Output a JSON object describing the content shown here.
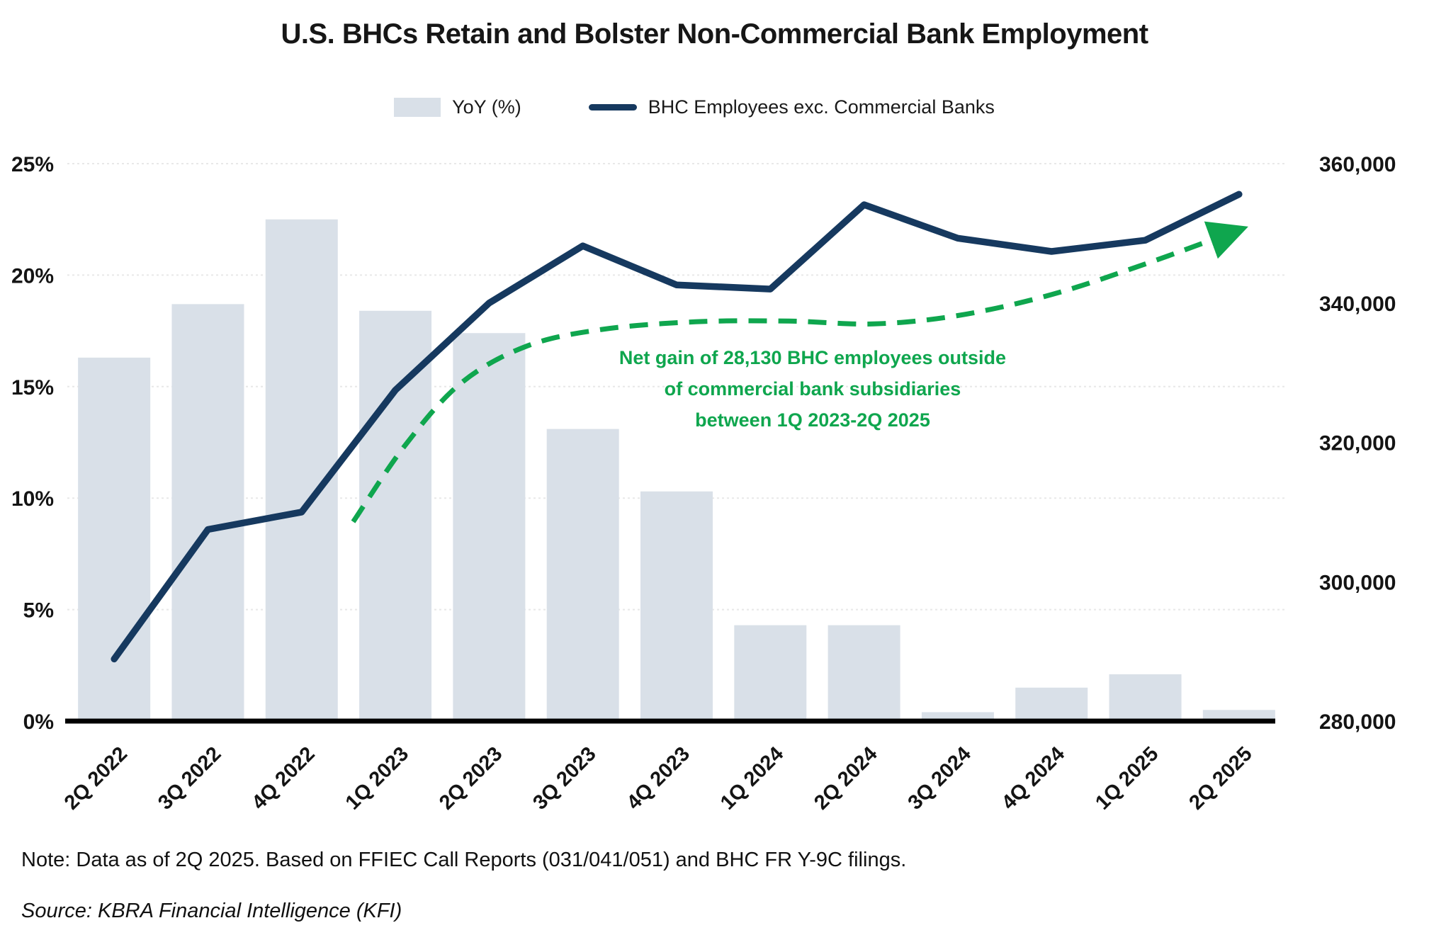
{
  "title": "U.S. BHCs Retain and Bolster Non-Commercial Bank Employment",
  "legend": [
    {
      "label": "YoY (%)",
      "swatch": "bar"
    },
    {
      "label": "BHC Employees exc. Commercial Banks",
      "swatch": "line"
    }
  ],
  "annotation": {
    "lines": [
      "Net gain of 28,130 BHC employees outside",
      "of commercial bank subsidiaries",
      "between 1Q 2023-2Q 2025"
    ]
  },
  "note": "Note: Data as of 2Q 2025. Based on FFIEC Call Reports (031/041/051) and BHC FR Y-9C filings.",
  "source": "Source: KBRA Financial Intelligence (KFI)",
  "colors": {
    "bar": "#D9E0E8",
    "line": "#16395F",
    "green": "#0FA64E",
    "grid": "#E8E8E8",
    "axis": "#000000"
  },
  "chart_data": {
    "type": "bar+line",
    "title": "U.S. BHCs Retain and Bolster Non-Commercial Bank Employment",
    "categories": [
      "2Q 2022",
      "3Q 2022",
      "4Q 2022",
      "1Q 2023",
      "2Q 2023",
      "3Q 2023",
      "4Q 2023",
      "1Q 2024",
      "2Q 2024",
      "3Q 2024",
      "4Q 2024",
      "1Q 2025",
      "2Q 2025"
    ],
    "series": [
      {
        "name": "YoY (%)",
        "type": "bar",
        "axis": "left",
        "unit": "%",
        "values": [
          16.3,
          18.7,
          22.5,
          18.4,
          17.4,
          13.1,
          10.3,
          4.3,
          4.3,
          0.4,
          1.5,
          2.1,
          0.5
        ]
      },
      {
        "name": "BHC Employees exc. Commercial Banks",
        "type": "line",
        "axis": "right",
        "unit": "employees",
        "values": [
          288900,
          307500,
          310000,
          327500,
          340000,
          348200,
          342600,
          342000,
          354100,
          349300,
          347400,
          349000,
          355600
        ]
      }
    ],
    "left_axis": {
      "min": 0,
      "max": 25,
      "ticks": [
        {
          "label": "25%",
          "value": 25
        },
        {
          "label": "20%",
          "value": 20
        },
        {
          "label": "15%",
          "value": 15
        },
        {
          "label": "10%",
          "value": 10
        },
        {
          "label": "5%",
          "value": 5
        },
        {
          "label": "0%",
          "value": 0
        }
      ]
    },
    "right_axis": {
      "min": 280000,
      "max": 360000,
      "ticks": [
        {
          "label": "360,000",
          "value": 360000
        },
        {
          "label": "340,000",
          "value": 340000
        },
        {
          "label": "320,000",
          "value": 320000
        },
        {
          "label": "300,000",
          "value": 300000
        },
        {
          "label": "280,000",
          "value": 280000
        }
      ]
    },
    "gridlines": true,
    "legend_position": "top",
    "annotation_curve": {
      "description": "green dashed arrow showing net gain from 1Q 2023 to 2Q 2025",
      "units": "thousands (right axis)",
      "points": [
        [
          2.55,
          308.6
        ],
        [
          3.1,
          319.5
        ],
        [
          3.7,
          328.5
        ],
        [
          4.4,
          333.8
        ],
        [
          5.2,
          336.2
        ],
        [
          6.2,
          337.3
        ],
        [
          7.2,
          337.4
        ],
        [
          8.1,
          337.0
        ],
        [
          9.0,
          338.2
        ],
        [
          10.0,
          341.2
        ],
        [
          11.0,
          345.6
        ],
        [
          11.9,
          350.0
        ]
      ]
    }
  }
}
